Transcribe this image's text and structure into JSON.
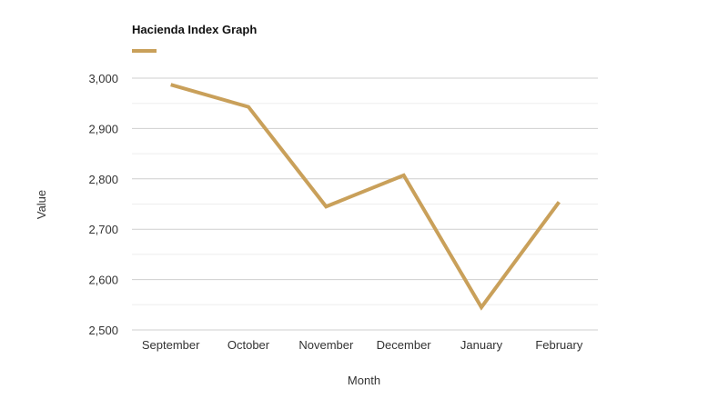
{
  "chart_data": {
    "type": "line",
    "title": "Hacienda Index Graph",
    "xlabel": "Month",
    "ylabel": "Value",
    "categories": [
      "September",
      "October",
      "November",
      "December",
      "January",
      "February"
    ],
    "series": [
      {
        "values": [
          2987,
          2943,
          2745,
          2807,
          2545,
          2754
        ]
      }
    ],
    "ylim": [
      2500,
      3000
    ],
    "yticks": [
      2500,
      2600,
      2700,
      2800,
      2900,
      3000
    ],
    "ytick_labels": [
      "2,500",
      "2,600",
      "2,700",
      "2,800",
      "2,900",
      "3,000"
    ],
    "grid": true,
    "legend": "top-left",
    "colors": {
      "series": "#C9A05A",
      "grid_major": "#cfcfcf",
      "grid_minor": "#eeeeee"
    }
  }
}
